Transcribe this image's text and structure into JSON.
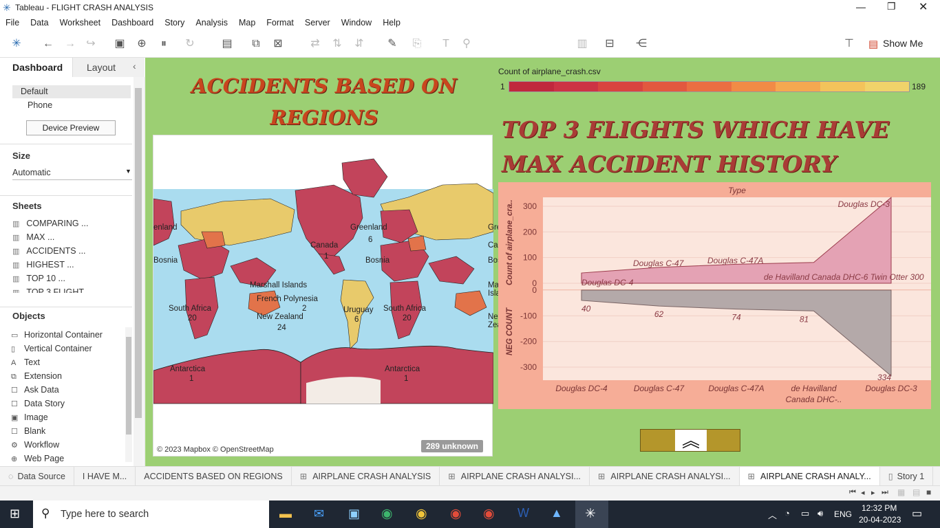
{
  "window": {
    "title": "Tableau - FLIGHT CRASH ANALYSIS"
  },
  "menu": [
    "File",
    "Data",
    "Worksheet",
    "Dashboard",
    "Story",
    "Analysis",
    "Map",
    "Format",
    "Server",
    "Window",
    "Help"
  ],
  "toolbar": {
    "show_me": "Show Me"
  },
  "left": {
    "tabs": {
      "dashboard": "Dashboard",
      "layout": "Layout"
    },
    "devices": {
      "default": "Default",
      "phone": "Phone",
      "preview": "Device Preview"
    },
    "size": {
      "heading": "Size",
      "value": "Automatic"
    },
    "sheets": {
      "heading": "Sheets",
      "items": [
        "COMPARING ...",
        "MAX ...",
        "ACCIDENTS ...",
        "HIGHEST ...",
        "TOP 10 ...",
        "TOP 3 FLIGHT ..."
      ]
    },
    "objects": {
      "heading": "Objects",
      "items": [
        "Horizontal Container",
        "Vertical Container",
        "Text",
        "Extension",
        "Ask Data",
        "Data Story",
        "Image",
        "Blank",
        "Workflow",
        "Web Page"
      ]
    }
  },
  "dashboard": {
    "map_title": "ACCIDENTS BASED ON REGIONS",
    "map": {
      "credit": "© 2023 Mapbox © OpenStreetMap",
      "unknown": "289 unknown",
      "labels": [
        "enland",
        "Greenland",
        "6",
        "Canada",
        "1",
        "Bosnia",
        "Bosnia",
        "Marshall Islands",
        "French Polynesia",
        "2",
        "New Zealand",
        "24",
        "South Africa",
        "20",
        "South Africa",
        "20",
        "Antarctica",
        "1",
        "Antarctica",
        "1",
        "Uruguay",
        "6",
        "Greenland",
        "Canada",
        "Bosnia",
        "Marshall Islands",
        "New Zealand"
      ]
    },
    "legend": {
      "title": "Count of airplane_crash.csv",
      "min": "1",
      "max": "189",
      "colors": [
        "#c0283d",
        "#cc3344",
        "#d8443f",
        "#e2583f",
        "#ea6e42",
        "#f18b46",
        "#f5a850",
        "#f3c35b",
        "#f0d36a"
      ]
    },
    "chart_title": "TOP 3 FLIGHTS WHICH HAVE MAX ACCIDENT HISTORY",
    "top_rule": "Type",
    "chart_data": {
      "type": "area",
      "categories": [
        "Douglas DC-4",
        "Douglas C-47",
        "Douglas C-47A",
        "de Havilland Canada DHC-6 Twin Otter 300",
        "Douglas DC-3"
      ],
      "category_labels": [
        "Douglas DC-4",
        "Douglas C-47",
        "Douglas C-47A",
        "de Havilland Canada DHC-..",
        "Douglas DC-3"
      ],
      "series": [
        {
          "name": "Count of airplane_cra..",
          "values": [
            40,
            62,
            74,
            81,
            334
          ],
          "color": "#e4a2b4"
        },
        {
          "name": "NEG COUNT",
          "values": [
            -40,
            -62,
            -74,
            -81,
            -334
          ],
          "color": "#b4a9a9"
        }
      ],
      "top_ylabel": "Count of airplane_cra..",
      "bottom_ylabel": "NEG COUNT",
      "top_ticks": [
        "300",
        "200",
        "100",
        "0"
      ],
      "bottom_ticks": [
        "0",
        "-100",
        "-200",
        "-300"
      ],
      "top_ylim": [
        0,
        340
      ],
      "bottom_ylim": [
        -340,
        0
      ],
      "top_point_labels": [
        "Douglas DC-4",
        "Douglas C-47",
        "Douglas C-47A",
        "de Havilland Canada DHC-6 Twin Otter 300",
        "Douglas DC-3"
      ],
      "bottom_point_labels": [
        "40",
        "62",
        "74",
        "81",
        "334"
      ]
    }
  },
  "sheet_tabs": [
    "Data Source",
    "I HAVE M...",
    "ACCIDENTS BASED ON REGIONS",
    "AIRPLANE CRASH ANALYSIS",
    "AIRPLANE CRASH ANALYSI...",
    "AIRPLANE CRASH ANALYSI...",
    "AIRPLANE CRASH ANALY...",
    "Story 1"
  ],
  "taskbar": {
    "search": "Type here to search",
    "lang": "ENG",
    "time": "12:32 PM",
    "date": "20-04-2023"
  }
}
